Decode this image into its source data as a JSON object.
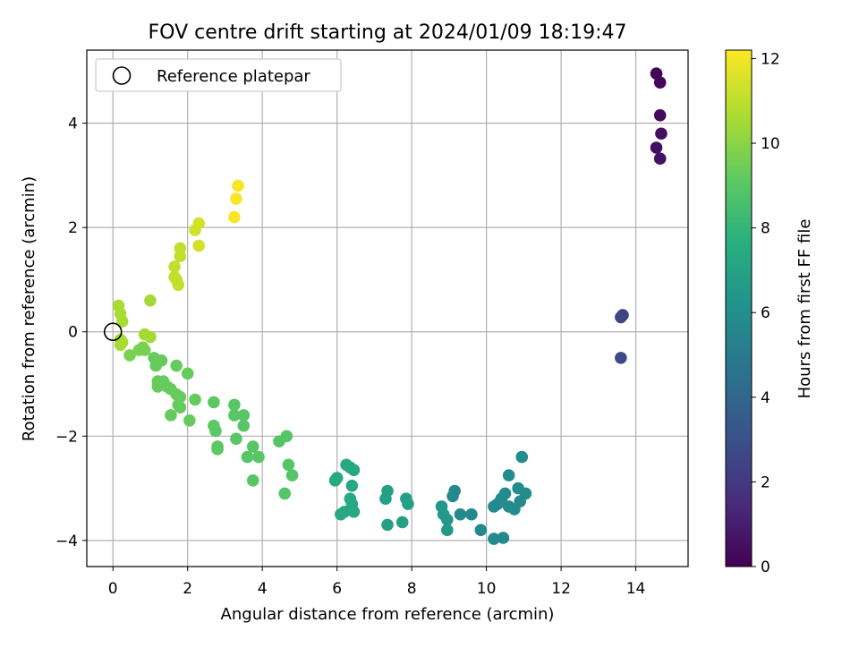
{
  "chart_data": {
    "type": "scatter",
    "title": "FOV centre drift starting at 2024/01/09 18:19:47",
    "xlabel": "Angular distance from reference (arcmin)",
    "ylabel": "Rotation from reference (arcmin)",
    "xlim": [
      -0.7,
      15.4
    ],
    "ylim": [
      -4.5,
      5.4
    ],
    "x_ticks": [
      0,
      2,
      4,
      6,
      8,
      10,
      12,
      14
    ],
    "x_tick_labels": [
      "0",
      "2",
      "4",
      "6",
      "8",
      "10",
      "12",
      "14"
    ],
    "y_ticks": [
      -4,
      -2,
      0,
      2,
      4
    ],
    "y_tick_labels": [
      "−4",
      "−2",
      "0",
      "2",
      "4"
    ],
    "grid": true,
    "legend": {
      "placement": "upper-left",
      "entries": [
        "Reference platepar"
      ]
    },
    "reference_point": {
      "x": 0,
      "y": 0
    },
    "colorbar": {
      "label": "Hours from first FF file",
      "colormap": "viridis",
      "range": [
        0,
        12.2
      ],
      "ticks": [
        0,
        2,
        4,
        6,
        8,
        10,
        12
      ],
      "tick_labels": [
        "0",
        "2",
        "4",
        "6",
        "8",
        "10",
        "12"
      ]
    },
    "points": [
      [
        14.55,
        4.95,
        0.1
      ],
      [
        14.65,
        4.78,
        0.2
      ],
      [
        14.65,
        4.15,
        0.3
      ],
      [
        14.68,
        3.8,
        0.4
      ],
      [
        14.55,
        3.53,
        0.5
      ],
      [
        14.65,
        3.32,
        0.6
      ],
      [
        13.65,
        0.32,
        2.4
      ],
      [
        13.6,
        0.28,
        2.5
      ],
      [
        13.6,
        -0.5,
        2.7
      ],
      [
        10.95,
        -2.4,
        5.9
      ],
      [
        10.6,
        -2.75,
        5.9
      ],
      [
        11.05,
        -3.1,
        5.9
      ],
      [
        10.85,
        -3.0,
        5.9
      ],
      [
        10.9,
        -3.25,
        5.8
      ],
      [
        10.75,
        -3.4,
        5.8
      ],
      [
        10.5,
        -3.1,
        5.8
      ],
      [
        10.4,
        -3.2,
        5.8
      ],
      [
        10.6,
        -3.35,
        5.8
      ],
      [
        10.3,
        -3.3,
        5.8
      ],
      [
        10.2,
        -3.35,
        5.7
      ],
      [
        10.45,
        -3.95,
        5.7
      ],
      [
        10.2,
        -3.97,
        5.7
      ],
      [
        9.85,
        -3.8,
        5.7
      ],
      [
        9.6,
        -3.5,
        5.7
      ],
      [
        9.3,
        -3.5,
        5.7
      ],
      [
        9.15,
        -3.05,
        5.7
      ],
      [
        9.1,
        -3.15,
        5.7
      ],
      [
        8.95,
        -3.6,
        6.4
      ],
      [
        8.95,
        -3.8,
        6.4
      ],
      [
        8.8,
        -3.35,
        6.4
      ],
      [
        8.85,
        -3.5,
        6.5
      ],
      [
        7.85,
        -3.2,
        6.9
      ],
      [
        7.9,
        -3.3,
        6.9
      ],
      [
        7.75,
        -3.65,
        6.9
      ],
      [
        7.35,
        -3.05,
        6.9
      ],
      [
        7.3,
        -3.2,
        6.9
      ],
      [
        7.35,
        -3.7,
        6.9
      ],
      [
        6.25,
        -2.55,
        7.3
      ],
      [
        6.35,
        -2.6,
        7.3
      ],
      [
        6.45,
        -2.65,
        7.3
      ],
      [
        6.4,
        -2.95,
        7.3
      ],
      [
        6.35,
        -3.2,
        7.3
      ],
      [
        6.4,
        -3.3,
        7.3
      ],
      [
        6.45,
        -3.45,
        7.3
      ],
      [
        6.2,
        -3.45,
        7.3
      ],
      [
        6.1,
        -3.5,
        7.3
      ],
      [
        6.0,
        -2.8,
        7.4
      ],
      [
        5.95,
        -2.85,
        7.4
      ],
      [
        4.65,
        -2.0,
        8.9
      ],
      [
        4.45,
        -2.1,
        8.9
      ],
      [
        4.7,
        -2.55,
        8.9
      ],
      [
        4.8,
        -2.75,
        8.9
      ],
      [
        4.6,
        -3.1,
        8.9
      ],
      [
        3.5,
        -1.6,
        9.0
      ],
      [
        3.5,
        -1.8,
        9.0
      ],
      [
        3.25,
        -1.4,
        9.0
      ],
      [
        3.25,
        -1.6,
        9.0
      ],
      [
        3.3,
        -2.05,
        9.0
      ],
      [
        3.75,
        -2.2,
        9.0
      ],
      [
        3.9,
        -2.4,
        9.0
      ],
      [
        3.6,
        -2.4,
        9.0
      ],
      [
        3.75,
        -2.85,
        9.0
      ],
      [
        2.7,
        -1.35,
        9.1
      ],
      [
        2.7,
        -1.8,
        9.1
      ],
      [
        2.75,
        -1.9,
        9.1
      ],
      [
        2.8,
        -2.2,
        9.1
      ],
      [
        2.8,
        -2.25,
        9.1
      ],
      [
        2.2,
        -1.3,
        9.3
      ],
      [
        2.05,
        -1.7,
        9.3
      ],
      [
        2.0,
        -0.8,
        9.3
      ],
      [
        1.8,
        -1.25,
        9.3
      ],
      [
        1.8,
        -1.45,
        9.3
      ],
      [
        1.75,
        -1.4,
        9.3
      ],
      [
        1.7,
        -1.2,
        9.3
      ],
      [
        1.7,
        -0.65,
        9.3
      ],
      [
        1.55,
        -1.1,
        9.3
      ],
      [
        1.55,
        -1.6,
        9.3
      ],
      [
        1.45,
        -1.05,
        9.3
      ],
      [
        1.35,
        -0.95,
        9.3
      ],
      [
        1.3,
        -0.55,
        9.3
      ],
      [
        1.2,
        -0.95,
        9.3
      ],
      [
        1.2,
        -1.05,
        9.3
      ],
      [
        1.15,
        -0.65,
        9.3
      ],
      [
        1.1,
        -0.5,
        9.3
      ],
      [
        0.85,
        -0.35,
        9.7
      ],
      [
        0.8,
        -0.3,
        9.7
      ],
      [
        0.7,
        -0.35,
        9.7
      ],
      [
        0.45,
        -0.45,
        9.7
      ],
      [
        0.25,
        -0.2,
        10.6
      ],
      [
        0.2,
        -0.25,
        10.6
      ],
      [
        0.2,
        -0.15,
        10.6
      ],
      [
        0.25,
        0.2,
        10.6
      ],
      [
        0.2,
        0.35,
        10.6
      ],
      [
        0.15,
        0.5,
        10.6
      ],
      [
        0.85,
        -0.05,
        10.5
      ],
      [
        1.0,
        -0.1,
        10.5
      ],
      [
        1.0,
        0.6,
        10.5
      ],
      [
        1.8,
        1.6,
        11.1
      ],
      [
        1.8,
        1.45,
        11.1
      ],
      [
        1.65,
        1.25,
        11.1
      ],
      [
        1.65,
        1.05,
        11.1
      ],
      [
        1.7,
        1.0,
        11.1
      ],
      [
        1.75,
        0.9,
        11.1
      ],
      [
        2.3,
        2.08,
        11.4
      ],
      [
        2.2,
        1.95,
        11.4
      ],
      [
        2.3,
        1.65,
        11.4
      ],
      [
        3.35,
        2.8,
        12.1
      ],
      [
        3.3,
        2.55,
        12.1
      ],
      [
        3.25,
        2.2,
        12.1
      ]
    ]
  }
}
